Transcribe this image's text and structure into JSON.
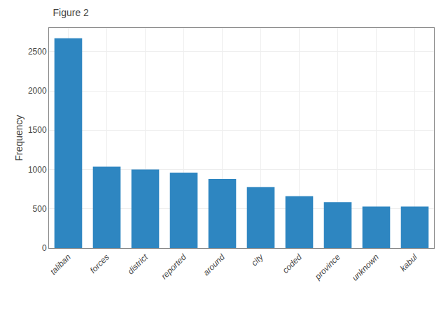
{
  "chart_data": {
    "type": "bar",
    "title": "Figure 2",
    "categories": [
      "taliban",
      "forces",
      "district",
      "reported",
      "around",
      "city",
      "coded",
      "province",
      "unknown",
      "kabul"
    ],
    "values": [
      2670,
      1035,
      1000,
      960,
      880,
      775,
      660,
      585,
      530,
      530
    ],
    "color": "#2e86c1",
    "ylabel": "Frequency",
    "ylim": [
      0,
      2800
    ],
    "yticks": [
      0,
      500,
      1000,
      1500,
      2000,
      2500
    ],
    "grid": true
  }
}
